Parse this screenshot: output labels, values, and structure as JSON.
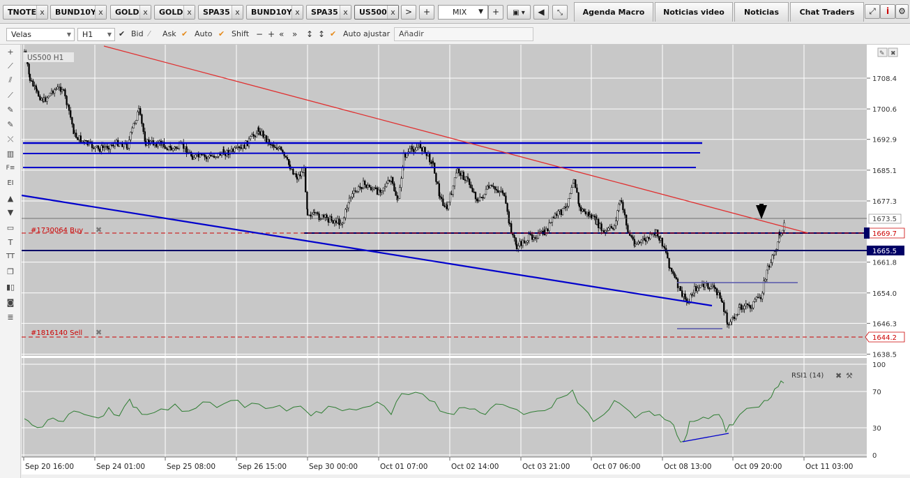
{
  "tabs": [
    {
      "label": "TNOTE"
    },
    {
      "label": "BUND10Y"
    },
    {
      "label": "GOLD"
    },
    {
      "label": "GOLD"
    },
    {
      "label": "SPA35"
    },
    {
      "label": "BUND10Y"
    },
    {
      "label": "SPA35"
    },
    {
      "label": "US500"
    }
  ],
  "tab_close": "x",
  "nav": {
    "next": ">",
    "add": "+"
  },
  "layout_select": {
    "value": "MIX",
    "plus": "+"
  },
  "right_tabs": [
    "Agenda Macro",
    "Noticias video",
    "Noticias",
    "Chat Traders"
  ],
  "toolbar": {
    "chart_type": "Velas",
    "timeframe": "H1",
    "bid": "Bid",
    "ask": "Ask",
    "auto": "Auto",
    "shift": "Shift",
    "auto_adjust": "Auto ajustar",
    "add_placeholder": "Añadir"
  },
  "chart_data": {
    "type": "candlestick",
    "symbol_label": "US500 H1",
    "y_ticks": [
      "1708.4",
      "1700.6",
      "1692.9",
      "1685.1",
      "1677.3",
      "1661.8",
      "1654.0",
      "1646.3",
      "1638.5"
    ],
    "ylim": [
      1636.0,
      1718.0
    ],
    "current_price": "1673.5",
    "price_labels": [
      {
        "value": "1669.7",
        "color": "#cc0000",
        "type": "order-buy"
      },
      {
        "value": "1665.5",
        "color": "#000066",
        "type": "line"
      },
      {
        "value": "1644.2",
        "color": "#cc0000",
        "type": "order-sell"
      }
    ],
    "orders": [
      {
        "label": "#1730064 Buy",
        "price": 1669.7
      },
      {
        "label": "#1816140 Sell",
        "price": 1644.2
      }
    ],
    "horizontal_lines": [
      1692.9,
      1690.6,
      1686.1,
      1669.7,
      1665.5
    ],
    "x_ticks": [
      "Sep 20 16:00",
      "Sep 24 01:00",
      "Sep 25 08:00",
      "Sep 26 15:00",
      "Sep 30 00:00",
      "Oct 01 07:00",
      "Oct 02 14:00",
      "Oct 03 21:00",
      "Oct 07 06:00",
      "Oct 08 13:00",
      "Oct 09 20:00",
      "Oct 11 03:00"
    ],
    "indicator": {
      "name": "RSI1 (14)",
      "ticks": [
        "100",
        "70",
        "30",
        "0"
      ],
      "ylim": [
        0,
        100
      ],
      "color": "#2e7d32"
    },
    "colors": {
      "trend_red": "#e03030",
      "trend_blue": "#0000cc",
      "candle": "#000000",
      "grid": "#ffffff",
      "background": "#c8c8c8"
    }
  }
}
